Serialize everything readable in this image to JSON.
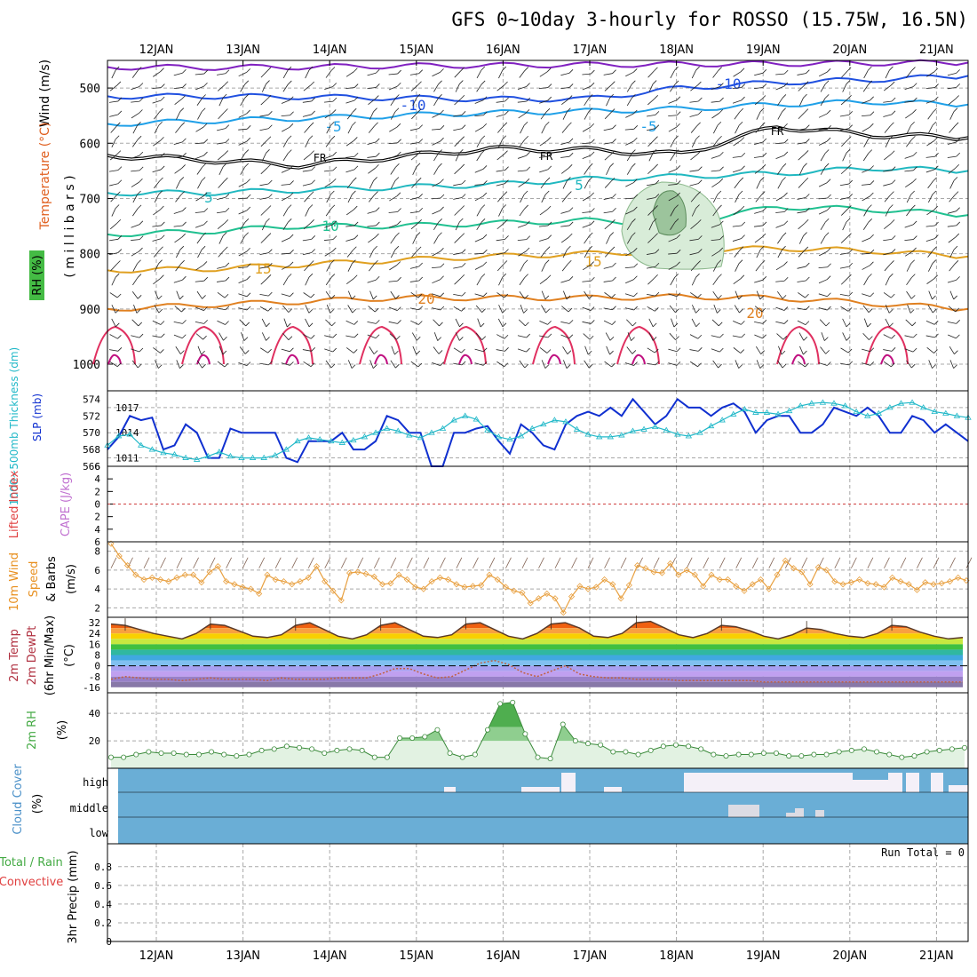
{
  "title": "GFS 0~10day 3-hourly for ROSSO (15.75W, 16.5N)",
  "date_labels": [
    "12JAN",
    "13JAN",
    "14JAN",
    "15JAN",
    "16JAN",
    "17JAN",
    "18JAN",
    "19JAN",
    "20JAN",
    "21JAN"
  ],
  "panel_labels": {
    "rh": "RH (%)",
    "temperature": "Temperature (°C)",
    "wind": "Wind (m/s)",
    "millibars": "( m i l l i b a r s )",
    "thickness": "1000~500mb Thickness (dm)",
    "slp": "SLP (mb)",
    "lifted_index": "Lifted Index",
    "cape": "CAPE (J/kg)",
    "wind10": "10m Wind",
    "speed": "Speed",
    "barbs": "& Barbs",
    "ms_unit": "(m/s)",
    "temp2m": "2m Temp",
    "dewpt2m": "2m DewPt",
    "minmax": "(6hr Min/Max)",
    "degc_unit": "(°C)",
    "rh2m": "2m RH",
    "pct_unit": "(%)",
    "cloud_cover": "Cloud Cover",
    "cloud_pct": "(%)",
    "total_rain": "Total / Rain",
    "convective": "Convective",
    "precip": "3hr Precip (mm)",
    "run_total": "Run Total = 0"
  },
  "colors": {
    "slp": "#1030d0",
    "thickness": "#20b8c8",
    "wind_speed": "#e8a040",
    "rh": "#44aa44",
    "cloud_bg": "#6aaed6",
    "cloud_fill": "#f4f0f8",
    "freezing": "#000000"
  },
  "chart_data": [
    {
      "type": "line",
      "name": "upper-air cross section",
      "y_axis_ticks": [
        500,
        600,
        700,
        800,
        900,
        1000
      ],
      "y_axis_inverted": true,
      "ylim": [
        450,
        1000
      ],
      "contour_labels": [
        "-10",
        "-10",
        "-5",
        "-5",
        "FR",
        "FR",
        "FR",
        "5",
        "5",
        "10",
        "10",
        "15",
        "15",
        "20",
        "20",
        "50"
      ],
      "isotherms": [
        {
          "label": "-15",
          "values": [
            462,
            463,
            462,
            460,
            459,
            458,
            457,
            456,
            455,
            454
          ]
        },
        {
          "label": "-10",
          "values": [
            515,
            515,
            516,
            518,
            520,
            520,
            500,
            490,
            485,
            478
          ]
        },
        {
          "label": "-5",
          "values": [
            565,
            560,
            555,
            550,
            545,
            542,
            538,
            530,
            525,
            530
          ]
        },
        {
          "label": "FR",
          "values": [
            622,
            630,
            640,
            625,
            610,
            612,
            620,
            570,
            585,
            590
          ]
        },
        {
          "label": "5",
          "values": [
            690,
            690,
            685,
            680,
            675,
            665,
            660,
            655,
            645,
            650
          ]
        },
        {
          "label": "10",
          "values": [
            765,
            760,
            750,
            750,
            745,
            740,
            745,
            715,
            720,
            730
          ]
        },
        {
          "label": "15",
          "values": [
            830,
            828,
            820,
            812,
            805,
            800,
            795,
            790,
            795,
            805
          ]
        },
        {
          "label": "20",
          "values": [
            900,
            893,
            887,
            880,
            880,
            880,
            878,
            880,
            890,
            900
          ]
        }
      ]
    },
    {
      "type": "line",
      "name": "SLP and thickness",
      "ylim_slp": [
        1010,
        1019
      ],
      "y_ticks_slp": [
        1011,
        1014,
        1017
      ],
      "ylim_thickness": [
        566,
        575
      ],
      "y_ticks_thickness": [
        566,
        568,
        570,
        572,
        574
      ],
      "series": [
        {
          "name": "SLP",
          "axis": "slp",
          "values": [
            1012,
            1013.5,
            1016,
            1015.5,
            1015.8,
            1012,
            1012.5,
            1015,
            1014,
            1011,
            1011,
            1014.5,
            1014,
            1014,
            1014,
            1014,
            1011,
            1010.5,
            1013,
            1013,
            1013,
            1014,
            1012,
            1012,
            1013,
            1016,
            1015.5,
            1014,
            1014,
            1010,
            1010,
            1014,
            1014,
            1014.5,
            1014.8,
            1013,
            1011.5,
            1015,
            1014,
            1012.5,
            1012,
            1015,
            1016,
            1016.5,
            1016,
            1017,
            1016,
            1018,
            1016.5,
            1015,
            1016,
            1018,
            1017,
            1017,
            1016,
            1017,
            1017.5,
            1016.5,
            1014,
            1015.5,
            1016,
            1016,
            1014,
            1014,
            1015,
            1017,
            1016.5,
            1016,
            1017,
            1016,
            1014,
            1014,
            1016,
            1015.5,
            1014,
            1015,
            1014,
            1013
          ]
        },
        {
          "name": "Thickness",
          "axis": "thickness",
          "values": [
            568.5,
            569.6,
            569.8,
            568.5,
            568,
            567.6,
            567.4,
            567,
            566.8,
            567.2,
            567.7,
            567.2,
            567,
            567,
            567,
            567.3,
            568,
            569,
            569.4,
            569.2,
            569,
            568.8,
            569.1,
            569.5,
            570,
            570.5,
            570.2,
            569.7,
            569.4,
            570,
            570.5,
            571.5,
            572,
            571.6,
            570.3,
            569.5,
            569.2,
            569.6,
            570.5,
            571,
            571.5,
            571.3,
            570.4,
            569.8,
            569.5,
            569.5,
            569.7,
            570.2,
            570.4,
            570.7,
            570.3,
            569.8,
            569.6,
            570,
            570.8,
            571.5,
            572.2,
            572.8,
            572.4,
            572.4,
            572.2,
            572.6,
            573.2,
            573.5,
            573.6,
            573.5,
            573.2,
            572.5,
            572,
            572.3,
            573,
            573.5,
            573.6,
            573,
            572.5,
            572.3,
            572,
            571.8
          ]
        }
      ]
    },
    {
      "type": "line",
      "name": "Lifted index / CAPE",
      "y_ticks": [
        -6,
        -4,
        -2,
        0,
        2,
        4,
        6
      ],
      "ylim": [
        6,
        -6
      ],
      "values": []
    },
    {
      "type": "line",
      "name": "10m wind speed",
      "ylim": [
        1,
        9
      ],
      "y_ticks": [
        2,
        4,
        6,
        8
      ],
      "values": [
        8.8,
        7.5,
        6.5,
        5.5,
        5.0,
        5.2,
        5.0,
        4.8,
        5.2,
        5.5,
        5.5,
        4.7,
        5.8,
        6.4,
        4.8,
        4.5,
        4.2,
        4.0,
        3.5,
        5.5,
        5.0,
        4.8,
        4.5,
        4.8,
        5.2,
        6.4,
        4.8,
        3.8,
        2.8,
        5.7,
        5.8,
        5.6,
        5.3,
        4.5,
        4.6,
        5.5,
        5.0,
        4.2,
        4.0,
        4.8,
        5.2,
        5.0,
        4.5,
        4.2,
        4.3,
        4.4,
        5.5,
        5.0,
        4.2,
        3.8,
        3.6,
        2.5,
        3.0,
        3.5,
        3.0,
        1.5,
        3.2,
        4.3,
        4.0,
        4.2,
        5.0,
        4.5,
        3.0,
        4.4,
        6.5,
        6.2,
        5.8,
        5.7,
        6.7,
        5.5,
        6.0,
        5.5,
        4.3,
        5.5,
        5.0,
        5.0,
        4.3,
        3.8,
        4.5,
        5.0,
        4.0,
        5.5,
        7.0,
        6.2,
        5.8,
        4.5,
        6.3,
        6.0,
        4.8,
        4.5,
        4.7,
        5.0,
        4.6,
        4.5,
        4.2,
        5.2,
        4.8,
        4.5,
        3.9,
        4.7,
        4.5,
        4.6,
        4.8,
        5.2,
        4.9
      ]
    },
    {
      "type": "area",
      "name": "2m temperature and dewpoint",
      "ylim": [
        -20,
        36
      ],
      "y_ticks": [
        -16,
        -8,
        0,
        8,
        16,
        24,
        32
      ],
      "series": [
        {
          "name": "2m Temp",
          "values": [
            31,
            30,
            27,
            24,
            22,
            20,
            24,
            31,
            30,
            26,
            22,
            21,
            23,
            30,
            32,
            27,
            22,
            20,
            23,
            30,
            32,
            27,
            22,
            21,
            23,
            31,
            32,
            27,
            22,
            20,
            24,
            31,
            32,
            28,
            22,
            21,
            24,
            32,
            33,
            28,
            23,
            21,
            24,
            30,
            29,
            26,
            22,
            20,
            23,
            28,
            27,
            24,
            22,
            21,
            24,
            30,
            29,
            25,
            22,
            20,
            21
          ]
        },
        {
          "name": "2m DewPt",
          "values": [
            -10,
            -8,
            -9,
            -10,
            -10,
            -11,
            -10,
            -9,
            -10,
            -10,
            -10,
            -11,
            -9,
            -10,
            -10,
            -10,
            -9,
            -9,
            -9,
            -6,
            -2,
            -2,
            -6,
            -9,
            -8,
            -3,
            2,
            4,
            1,
            -5,
            -8,
            -4,
            0,
            -6,
            -8,
            -9,
            -9,
            -10,
            -10,
            -10,
            -11,
            -11,
            -11,
            -11,
            -11,
            -11,
            -12,
            -12,
            -12,
            -12,
            -12,
            -12,
            -12,
            -12,
            -12,
            -12,
            -12,
            -12,
            -12,
            -12,
            -12
          ]
        }
      ]
    },
    {
      "type": "area",
      "name": "2m relative humidity",
      "ylim": [
        0,
        55
      ],
      "y_ticks": [
        20,
        40
      ],
      "values": [
        8,
        8,
        10,
        12,
        11,
        11,
        10,
        10,
        12,
        10,
        9,
        10,
        13,
        14,
        16,
        15,
        14,
        11,
        13,
        14,
        13,
        8,
        8,
        22,
        22,
        23,
        28,
        11,
        8,
        10,
        28,
        47,
        48,
        25,
        8,
        7,
        32,
        20,
        18,
        17,
        12,
        12,
        10,
        13,
        16,
        17,
        16,
        14,
        10,
        9,
        10,
        10,
        11,
        11,
        9,
        9,
        10,
        10,
        12,
        13,
        14,
        12,
        10,
        8,
        9,
        12,
        13,
        14,
        15
      ]
    },
    {
      "type": "heatmap",
      "name": "cloud cover",
      "categories": [
        "high",
        "middle",
        "low"
      ]
    },
    {
      "type": "bar",
      "name": "3hr precipitation",
      "ylim": [
        0,
        0.95
      ],
      "y_ticks": [
        0,
        0.2,
        0.4,
        0.6,
        0.8
      ],
      "values": []
    }
  ]
}
